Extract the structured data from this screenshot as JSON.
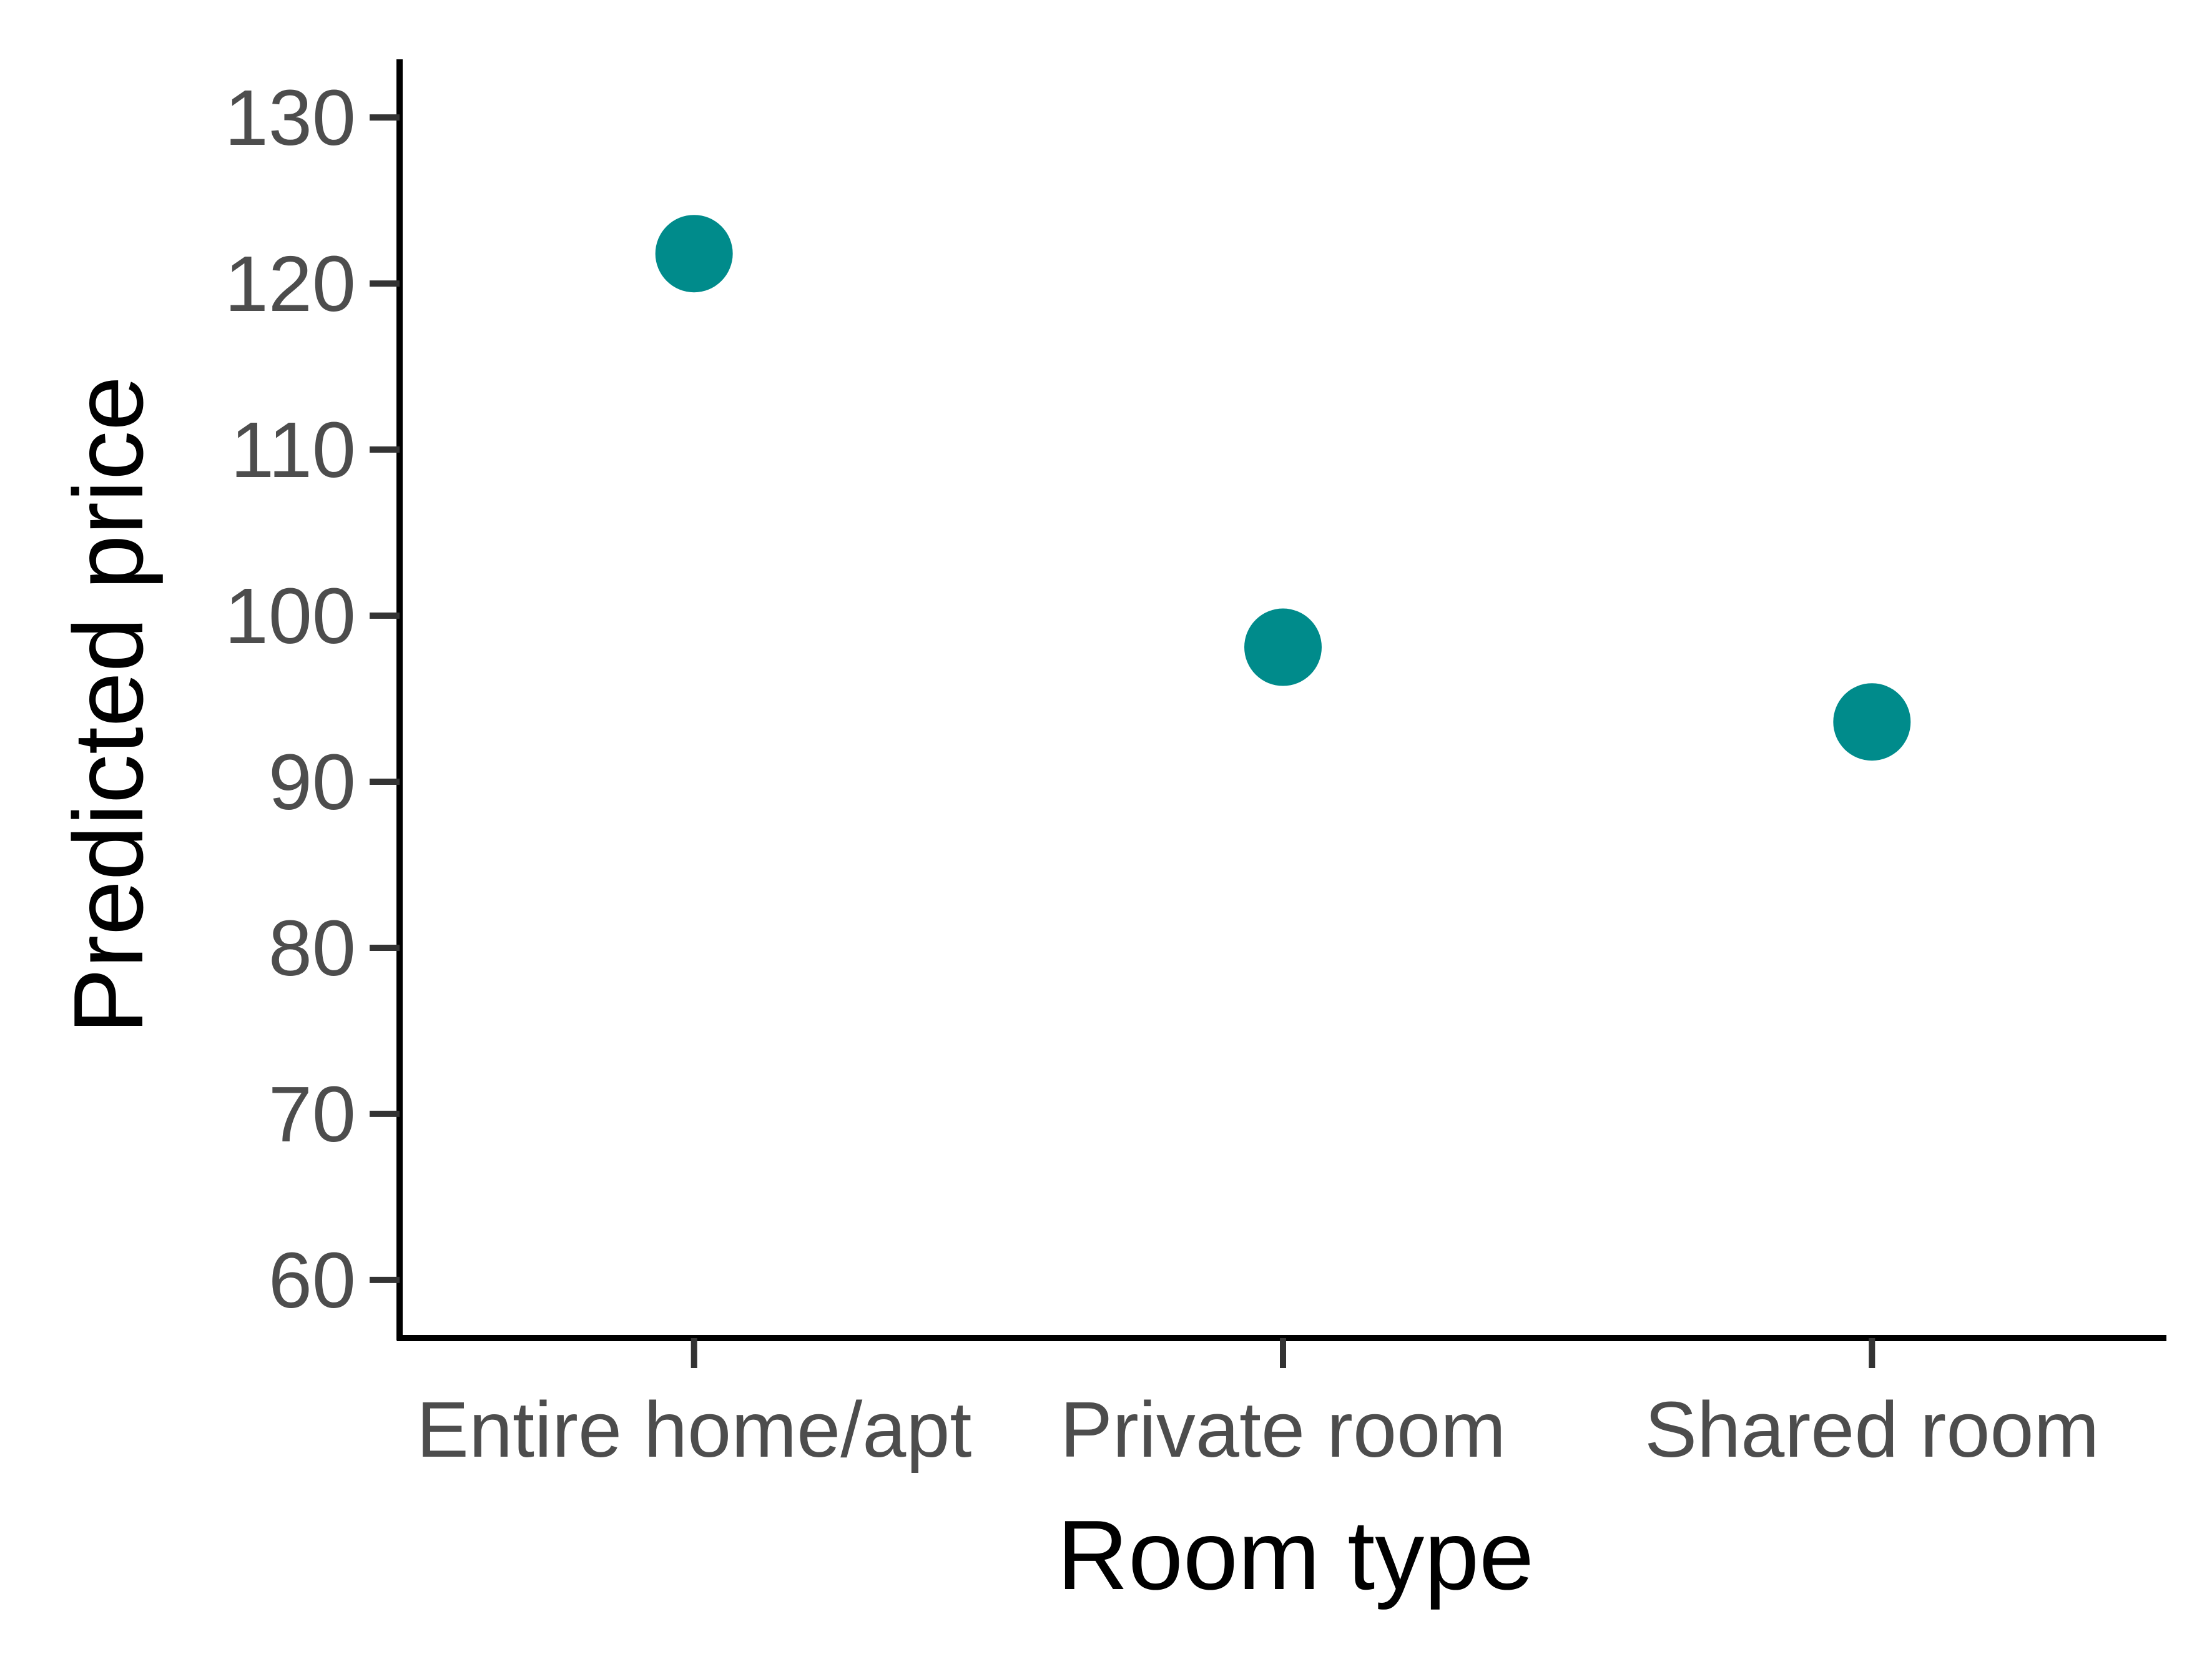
{
  "chart_data": {
    "type": "scatter",
    "title": "",
    "xlabel": "Room type",
    "ylabel": "Predicted price",
    "categories": [
      "Entire home/apt",
      "Private room",
      "Shared room"
    ],
    "values": [
      121.8,
      98.1,
      93.6
    ],
    "ylim": [
      56.5,
      133.5
    ],
    "yticks": [
      60,
      70,
      80,
      90,
      100,
      110,
      120,
      130
    ],
    "grid": false,
    "legend": "none",
    "point_color": "#008b8b"
  }
}
